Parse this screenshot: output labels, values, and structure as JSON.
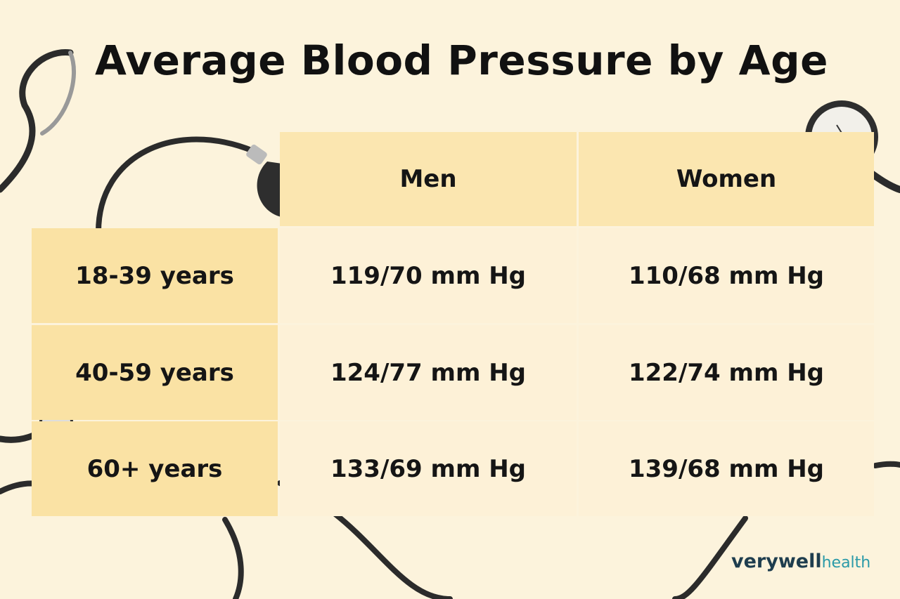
{
  "header": {
    "title": "Average Blood Pressure by Age"
  },
  "table": {
    "columns": [
      "Men",
      "Women"
    ],
    "rows": [
      [
        "18-39 years",
        "119/70 mm Hg",
        "110/68 mm Hg"
      ],
      [
        "40-59 years",
        "124/77 mm Hg",
        "122/74 mm Hg"
      ],
      [
        "60+ years",
        "133/69 mm Hg",
        "139/68 mm Hg"
      ]
    ]
  },
  "brand": {
    "name": "verywell",
    "suffix": "health"
  }
}
